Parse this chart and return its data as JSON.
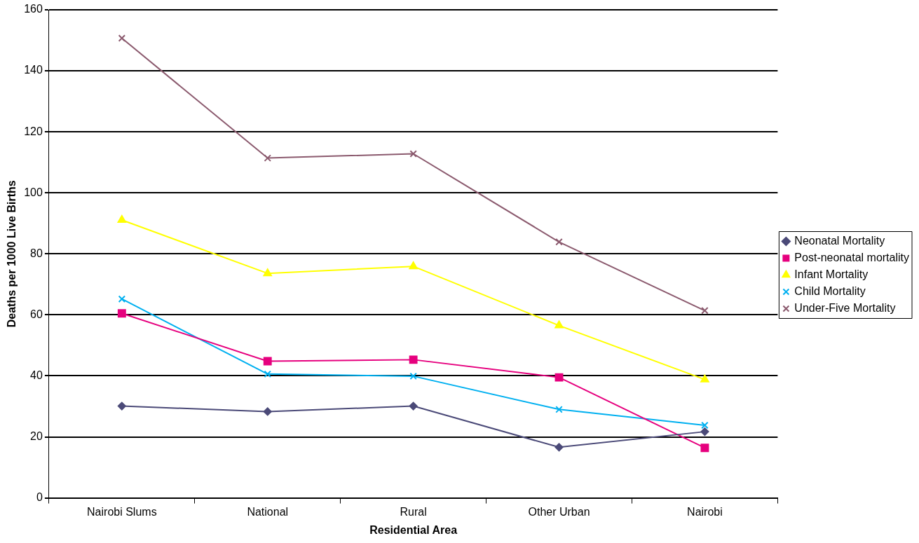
{
  "chart_data": {
    "type": "line",
    "xlabel": "Residential Area",
    "ylabel": "Deaths per 1000 Live Births",
    "categories": [
      "Nairobi Slums",
      "National",
      "Rural",
      "Other Urban",
      "Nairobi"
    ],
    "series": [
      {
        "name": "Neonatal Mortality",
        "color": "#4b4a78",
        "marker": "diamond",
        "values": [
          30.1,
          28.3,
          30.1,
          16.6,
          21.7
        ]
      },
      {
        "name": "Post-neonatal mortality",
        "color": "#e6007e",
        "marker": "square",
        "values": [
          60.5,
          44.8,
          45.3,
          39.5,
          16.4
        ]
      },
      {
        "name": "Infant Mortality",
        "color": "#ffff00",
        "marker": "triangle",
        "values": [
          91.1,
          73.6,
          75.9,
          56.5,
          38.8
        ]
      },
      {
        "name": "Child Mortality",
        "color": "#00b0f0",
        "marker": "cross",
        "values": [
          65.2,
          40.6,
          39.9,
          29.0,
          23.8
        ]
      },
      {
        "name": "Under-Five Mortality",
        "color": "#8b5a6e",
        "marker": "cross",
        "values": [
          150.7,
          111.4,
          112.8,
          83.9,
          61.4
        ]
      }
    ],
    "ylim": [
      0,
      160
    ],
    "yticks": [
      0,
      20,
      40,
      60,
      80,
      100,
      120,
      140,
      160
    ],
    "grid": "y",
    "legend": "right",
    "line_style": "solid"
  }
}
